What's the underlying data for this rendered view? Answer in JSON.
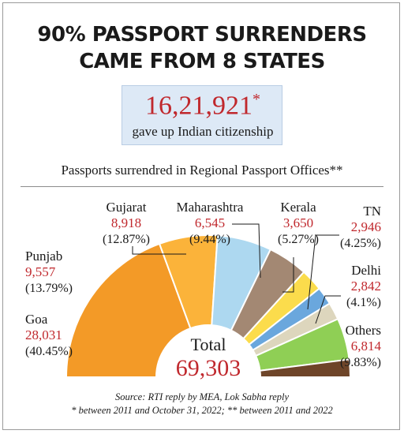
{
  "headline": {
    "line1": "90% PASSPORT SURRENDERS",
    "line2": "CAME FROM 8 STATES"
  },
  "stat": {
    "value": "16,21,921",
    "marker": "*",
    "caption": "gave up Indian citizenship"
  },
  "chart_data": {
    "type": "pie",
    "variant": "half-donut",
    "title": "Passports surrendred in Regional Passport Offices**",
    "total_label": "Total",
    "total_value": "69,303",
    "total": 69303,
    "slices": [
      {
        "name": "Goa",
        "value": 28031,
        "value_label": "28,031",
        "pct_label": "(40.45%)",
        "color": "#f39a27"
      },
      {
        "name": "Punjab",
        "value": 9557,
        "value_label": "9,557",
        "pct_label": "(13.79%)",
        "color": "#fbb33a"
      },
      {
        "name": "Gujarat",
        "value": 8918,
        "value_label": "8,918",
        "pct_label": "(12.87%)",
        "color": "#add8f0"
      },
      {
        "name": "Maharashtra",
        "value": 6545,
        "value_label": "6,545",
        "pct_label": "(9.44%)",
        "color": "#a38873"
      },
      {
        "name": "Kerala",
        "value": 3650,
        "value_label": "3,650",
        "pct_label": "(5.27%)",
        "color": "#fbdc4c"
      },
      {
        "name": "TN",
        "value": 2946,
        "value_label": "2,946",
        "pct_label": "(4.25%)",
        "color": "#6aa7dd"
      },
      {
        "name": "Delhi",
        "value": 2842,
        "value_label": "2,842",
        "pct_label": "(4.1%)",
        "color": "#ddd6bd"
      },
      {
        "name": "Others",
        "value": 6814,
        "value_label": "6,814",
        "pct_label": "(9.83%)",
        "color": "#8fcf55"
      }
    ],
    "extra_band_color": "#6e4529"
  },
  "source": {
    "line1": "Source: RTI reply by MEA, Lok Sabha reply",
    "line2": "* between 2011 and October 31, 2022; ** between 2011 and 2022"
  }
}
